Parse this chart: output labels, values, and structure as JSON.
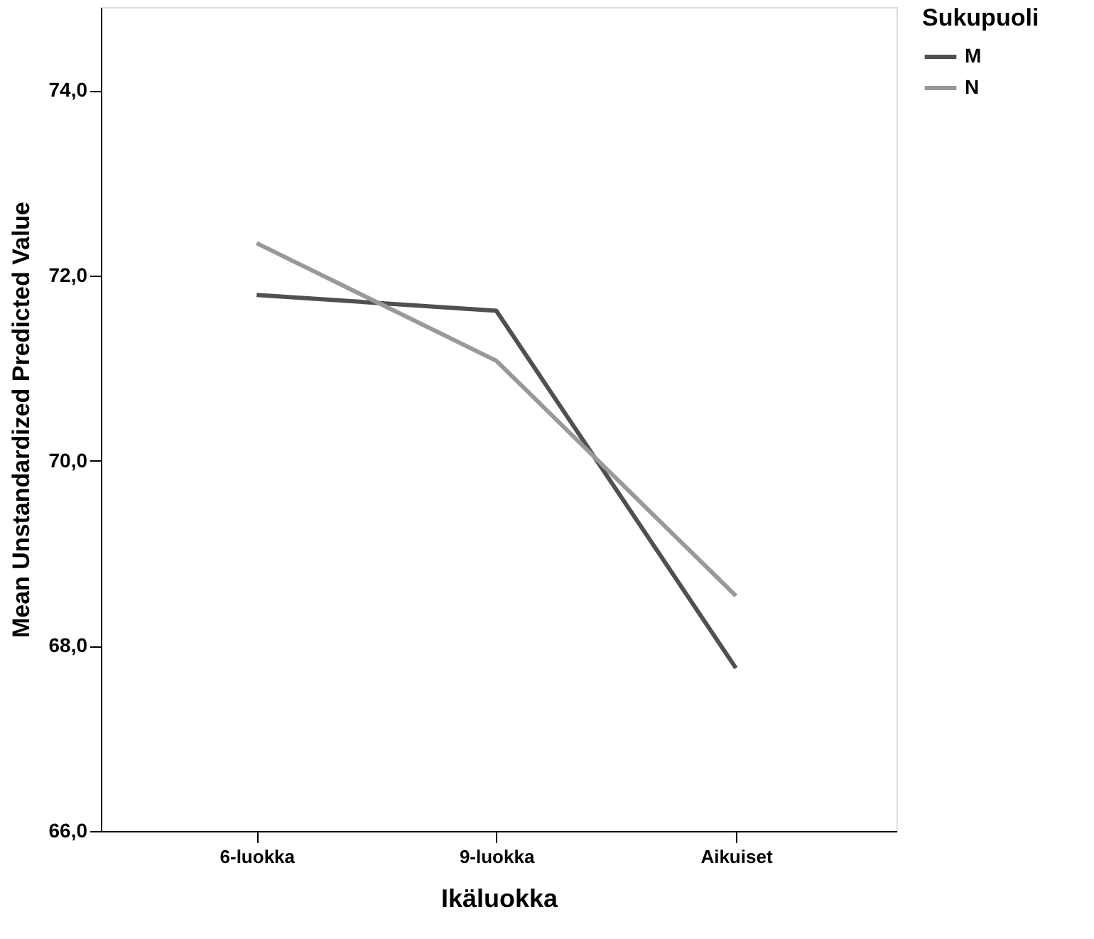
{
  "chart_data": {
    "type": "line",
    "xlabel": "Ikäluokka",
    "ylabel": "Mean Unstandardized Predicted Value",
    "legend_title": "Sukupuoli",
    "categories": [
      "6-luokka",
      "9-luokka",
      "Aikuiset"
    ],
    "series": [
      {
        "name": "M",
        "color": "#505050",
        "values": [
          71.79,
          71.62,
          67.76
        ]
      },
      {
        "name": "N",
        "color": "#999999",
        "values": [
          72.35,
          71.08,
          68.54
        ]
      }
    ],
    "ylim": [
      66,
      74.9
    ],
    "yticks": [
      {
        "value": 66,
        "label": "66,0"
      },
      {
        "value": 68,
        "label": "68,0"
      },
      {
        "value": 70,
        "label": "70,0"
      },
      {
        "value": 72,
        "label": "72,0"
      },
      {
        "value": 74,
        "label": "74,0"
      }
    ],
    "grid": false,
    "legend": "top right",
    "marker": "none",
    "line_style": "solid"
  }
}
